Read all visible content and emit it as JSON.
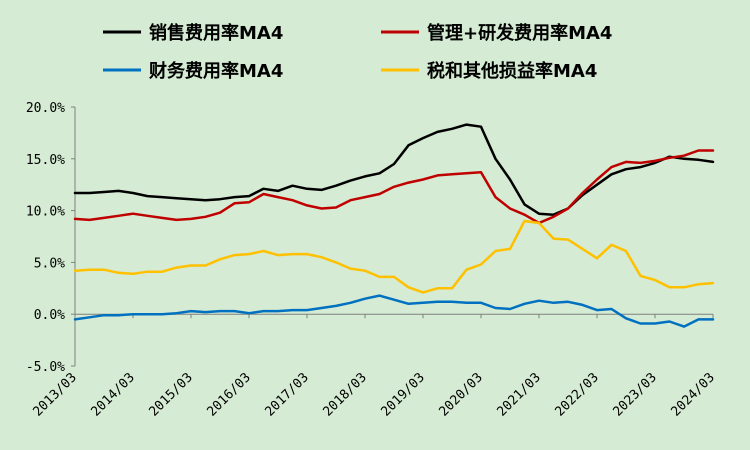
{
  "chart_data": {
    "type": "line",
    "title": "",
    "xlabel": "",
    "ylabel": "",
    "ylim": [
      -5,
      20
    ],
    "yticks": [
      "-5.0%",
      "0.0%",
      "5.0%",
      "10.0%",
      "15.0%",
      "20.0%"
    ],
    "ytick_values": [
      -5,
      0,
      5,
      10,
      15,
      20
    ],
    "xticks": [
      "2013/03",
      "2014/03",
      "2015/03",
      "2016/03",
      "2017/03",
      "2018/03",
      "2019/03",
      "2020/03",
      "2021/03",
      "2022/03",
      "2023/03",
      "2024/03"
    ],
    "grid": false,
    "legend_placement": "top",
    "x": [
      "2013/03",
      "2013/06",
      "2013/09",
      "2013/12",
      "2014/03",
      "2014/06",
      "2014/09",
      "2014/12",
      "2015/03",
      "2015/06",
      "2015/09",
      "2015/12",
      "2016/03",
      "2016/06",
      "2016/09",
      "2016/12",
      "2017/03",
      "2017/06",
      "2017/09",
      "2017/12",
      "2018/03",
      "2018/06",
      "2018/09",
      "2018/12",
      "2019/03",
      "2019/06",
      "2019/09",
      "2019/12",
      "2020/03",
      "2020/06",
      "2020/09",
      "2020/12",
      "2021/03",
      "2021/06",
      "2021/09",
      "2021/12",
      "2022/03",
      "2022/06",
      "2022/09",
      "2022/12",
      "2023/03",
      "2023/06",
      "2023/09",
      "2023/12",
      "2024/03"
    ],
    "series": [
      {
        "name": "销售费用率MA4",
        "color": "#000000",
        "values": [
          11.7,
          11.7,
          11.8,
          11.9,
          11.7,
          11.4,
          11.3,
          11.2,
          11.1,
          11.0,
          11.1,
          11.3,
          11.4,
          12.1,
          11.9,
          12.4,
          12.1,
          12.0,
          12.4,
          12.9,
          13.3,
          13.6,
          14.5,
          16.3,
          17.0,
          17.6,
          17.9,
          18.3,
          18.1,
          15.0,
          13.0,
          10.6,
          9.7,
          9.6,
          10.2,
          11.5,
          12.5,
          13.5,
          14.0,
          14.2,
          14.6,
          15.2,
          15.0,
          14.9,
          14.7
        ]
      },
      {
        "name": "管理+研发费用率MA4",
        "color": "#c00000",
        "values": [
          9.2,
          9.1,
          9.3,
          9.5,
          9.7,
          9.5,
          9.3,
          9.1,
          9.2,
          9.4,
          9.8,
          10.7,
          10.8,
          11.6,
          11.3,
          11.0,
          10.5,
          10.2,
          10.3,
          11.0,
          11.3,
          11.6,
          12.3,
          12.7,
          13.0,
          13.4,
          13.5,
          13.6,
          13.7,
          11.3,
          10.2,
          9.6,
          8.8,
          9.4,
          10.2,
          11.7,
          13.0,
          14.2,
          14.7,
          14.6,
          14.8,
          15.1,
          15.3,
          15.8,
          15.8
        ]
      },
      {
        "name": "财务费用率MA4",
        "color": "#0070c0",
        "values": [
          -0.5,
          -0.3,
          -0.1,
          -0.1,
          0.0,
          0.0,
          0.0,
          0.1,
          0.3,
          0.2,
          0.3,
          0.3,
          0.1,
          0.3,
          0.3,
          0.4,
          0.4,
          0.6,
          0.8,
          1.1,
          1.5,
          1.8,
          1.4,
          1.0,
          1.1,
          1.2,
          1.2,
          1.1,
          1.1,
          0.6,
          0.5,
          1.0,
          1.3,
          1.1,
          1.2,
          0.9,
          0.4,
          0.5,
          -0.4,
          -0.9,
          -0.9,
          -0.7,
          -1.2,
          -0.5,
          -0.5
        ]
      },
      {
        "name": "税和其他损益率MA4",
        "color": "#ffc000",
        "values": [
          4.2,
          4.3,
          4.3,
          4.0,
          3.9,
          4.1,
          4.1,
          4.5,
          4.7,
          4.7,
          5.3,
          5.7,
          5.8,
          6.1,
          5.7,
          5.8,
          5.8,
          5.5,
          5.0,
          4.4,
          4.2,
          3.6,
          3.6,
          2.6,
          2.1,
          2.5,
          2.5,
          4.3,
          4.8,
          6.1,
          6.3,
          9.0,
          8.8,
          7.3,
          7.2,
          6.3,
          5.4,
          6.7,
          6.1,
          3.7,
          3.3,
          2.6,
          2.6,
          2.9,
          3.0
        ]
      }
    ]
  }
}
